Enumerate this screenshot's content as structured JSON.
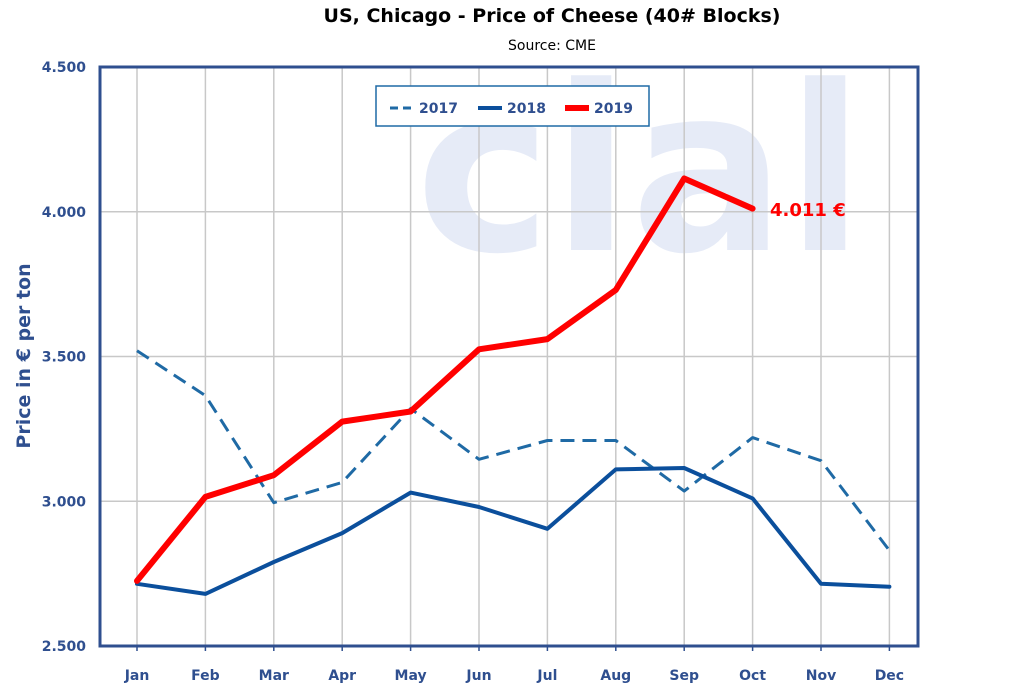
{
  "chart_data": {
    "type": "line",
    "title": "US, Chicago - Price of Cheese (40# Blocks)",
    "subtitle": "Source: CME",
    "ylabel": "Price in € per ton",
    "xlabel": "",
    "categories": [
      "Jan",
      "Feb",
      "Mar",
      "Apr",
      "May",
      "Jun",
      "Jul",
      "Aug",
      "Sep",
      "Oct",
      "Nov",
      "Dec"
    ],
    "ylim": [
      2500,
      4500
    ],
    "yticks": [
      2500,
      3000,
      3500,
      4000,
      4500
    ],
    "ytick_labels": [
      "2.500",
      "3.000",
      "3.500",
      "4.000",
      "4.500"
    ],
    "grid": true,
    "legend_position": "top-center",
    "series": [
      {
        "name": "2017",
        "color": "#1f6aa5",
        "style": "dashed",
        "values": [
          3520,
          3365,
          2995,
          3065,
          3320,
          3145,
          3210,
          3210,
          3035,
          3220,
          3140,
          2830
        ]
      },
      {
        "name": "2018",
        "color": "#0b4f9c",
        "style": "solid",
        "values": [
          2715,
          2680,
          2790,
          2890,
          3030,
          2980,
          2905,
          3110,
          3115,
          3010,
          2715,
          2705
        ]
      },
      {
        "name": "2019",
        "color": "#ff0000",
        "style": "solid",
        "values": [
          2725,
          3015,
          3090,
          3275,
          3310,
          3525,
          3560,
          3730,
          4115,
          4011,
          null,
          null
        ]
      }
    ],
    "annotation": {
      "text": "4.011 €",
      "color": "#ff0000"
    },
    "watermark": "clal"
  }
}
